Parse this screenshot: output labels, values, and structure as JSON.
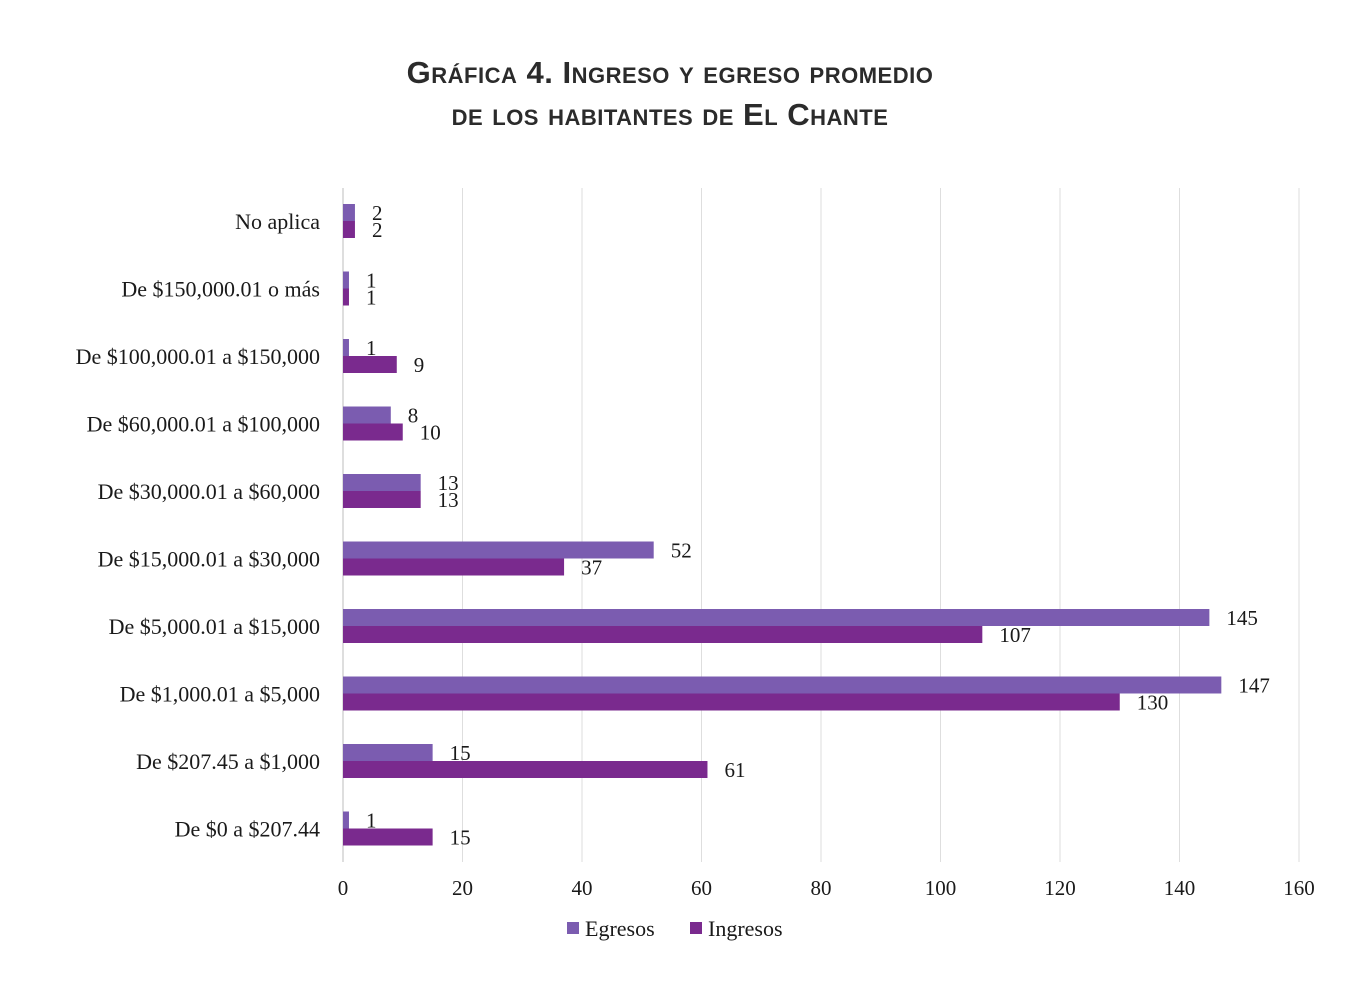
{
  "chart_data": {
    "type": "bar",
    "orientation": "horizontal",
    "title_line1": "Gráfica 4. Ingreso y egreso promedio",
    "title_line2": "de los habitantes de El Chante",
    "categories": [
      "No aplica",
      "De $150,000.01 o más",
      "De $100,000.01 a $150,000",
      "De $60,000.01 a $100,000",
      "De $30,000.01 a $60,000",
      "De $15,000.01 a $30,000",
      "De $5,000.01 a $15,000",
      "De $1,000.01 a $5,000",
      "De $207.45 a $1,000",
      "De $0 a $207.44"
    ],
    "series": [
      {
        "name": "Egresos",
        "color": "#7b5cb0",
        "values": [
          2,
          1,
          1,
          8,
          13,
          52,
          145,
          147,
          15,
          1
        ]
      },
      {
        "name": "Ingresos",
        "color": "#7a2a8e",
        "values": [
          2,
          1,
          9,
          10,
          13,
          37,
          107,
          130,
          61,
          15
        ]
      }
    ],
    "xlim": [
      0,
      160
    ],
    "xticks": [
      0,
      20,
      40,
      60,
      80,
      100,
      120,
      140,
      160
    ],
    "grid": true,
    "legend": "bottom-center"
  }
}
